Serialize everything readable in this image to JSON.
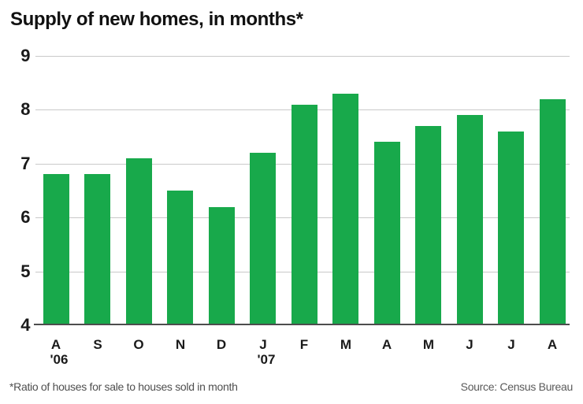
{
  "title": "Supply of new homes, in months*",
  "footnote": "*Ratio of houses for sale to houses sold in month",
  "source": "Source: Census Bureau",
  "colors": {
    "bar": "#18a94b",
    "gridline": "#c9c9c9",
    "baseline": "#4d4d4d",
    "title_text": "#111111",
    "axis_text": "#1a1a1a",
    "note_text": "#4f4f4f"
  },
  "chart_data": {
    "type": "bar",
    "title": "Supply of new homes, in months*",
    "categories": [
      "A",
      "S",
      "O",
      "N",
      "D",
      "J",
      "F",
      "M",
      "A",
      "M",
      "J",
      "J",
      "A"
    ],
    "year_markers": [
      {
        "index": 0,
        "label": "'06"
      },
      {
        "index": 5,
        "label": "'07"
      }
    ],
    "values": [
      6.8,
      6.8,
      7.1,
      6.5,
      6.2,
      7.2,
      8.1,
      8.3,
      7.4,
      7.7,
      7.9,
      7.6,
      8.2
    ],
    "xlabel": "",
    "ylabel": "",
    "ylim": [
      4,
      9
    ],
    "yticks": [
      9,
      8,
      7,
      6,
      5,
      4
    ],
    "grid": true,
    "legend": false
  }
}
